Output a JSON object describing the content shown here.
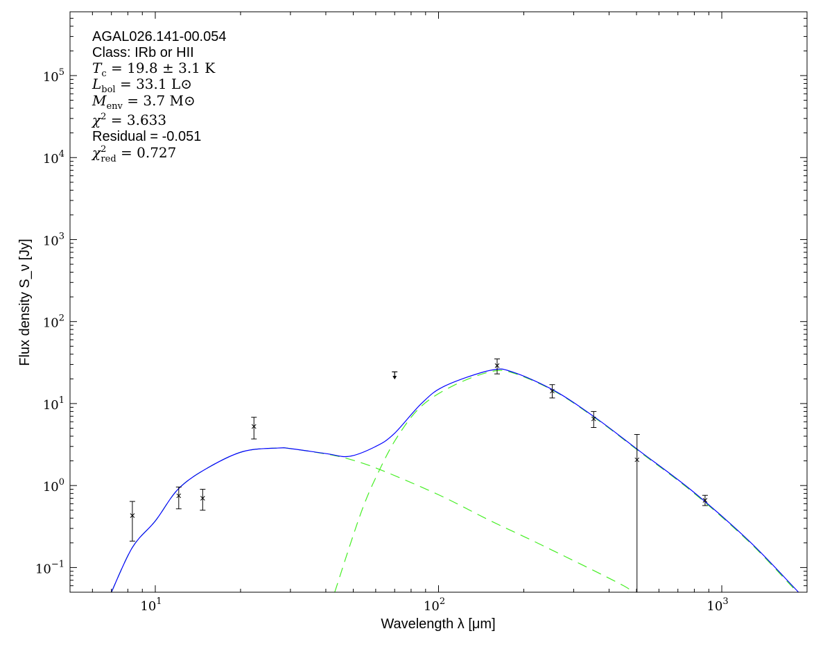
{
  "chart_data": {
    "type": "line",
    "title": "",
    "xlabel": "Wavelength λ [μm]",
    "ylabel": "Flux density S_ν [Jy]",
    "xscale": "log",
    "yscale": "log",
    "xlim": [
      5,
      2000
    ],
    "ylim": [
      0.05,
      600000
    ],
    "grid": false,
    "x_ticks": [
      {
        "base": "10",
        "exp": "1",
        "value": 10
      },
      {
        "base": "10",
        "exp": "2",
        "value": 100
      },
      {
        "base": "10",
        "exp": "3",
        "value": 1000
      }
    ],
    "y_ticks": [
      {
        "base": "10",
        "exp": "−1",
        "value": 0.1
      },
      {
        "base": "10",
        "exp": "0",
        "value": 1
      },
      {
        "base": "10",
        "exp": "1",
        "value": 10
      },
      {
        "base": "10",
        "exp": "2",
        "value": 100
      },
      {
        "base": "10",
        "exp": "3",
        "value": 1000
      },
      {
        "base": "10",
        "exp": "4",
        "value": 10000
      },
      {
        "base": "10",
        "exp": "5",
        "value": 100000
      }
    ],
    "annotations": {
      "name": "AGAL026.141-00.054",
      "class": "Class: IRb or HII",
      "temperature": {
        "sym": "T",
        "sub": "c",
        "sup": "",
        "value": " = 19.8 ± 3.1 K"
      },
      "luminosity": {
        "sym": "L",
        "sub": "bol",
        "sup": "",
        "value": " = 33.1 L⊙"
      },
      "mass": {
        "sym": "M",
        "sub": "env",
        "sup": "",
        "value": " = 3.7 M⊙"
      },
      "chi2": {
        "sym": "χ",
        "sub": "",
        "sup": "2",
        "value": " = 3.633"
      },
      "residual": "Residual = -0.051",
      "chi2_red": {
        "sym": "χ",
        "sub": "red",
        "sup": "2",
        "value": " = 0.727"
      }
    },
    "series": [
      {
        "role": "total-model",
        "color": "#0000ff",
        "style": "solid",
        "x": [
          7.0,
          8.3,
          10,
          12.1,
          15.4,
          20.4,
          27.1,
          30.3,
          40.2,
          48.4,
          59.8,
          69.5,
          87,
          105,
          153,
          184,
          258,
          363,
          508,
          793,
          1250,
          1800,
          1860
        ],
        "y": [
          0.05,
          0.176,
          0.37,
          0.92,
          1.66,
          2.6,
          2.87,
          2.81,
          2.45,
          2.27,
          2.98,
          4.24,
          10,
          16.3,
          25.5,
          24,
          14.2,
          6.5,
          2.7,
          0.84,
          0.21,
          0.057,
          0.05
        ]
      },
      {
        "role": "warm-component",
        "color": "#44ee22",
        "style": "dashed",
        "x": [
          7.0,
          8.3,
          10,
          12.1,
          15.4,
          20.4,
          27.1,
          30.3,
          40.2,
          48.4,
          62,
          101,
          153,
          232,
          450,
          466
        ],
        "y": [
          0.05,
          0.176,
          0.37,
          0.92,
          1.66,
          2.6,
          2.87,
          2.81,
          2.42,
          2.1,
          1.57,
          0.76,
          0.37,
          0.187,
          0.06,
          0.05
        ]
      },
      {
        "role": "cold-component",
        "color": "#44ee22",
        "style": "dashed",
        "x": [
          43,
          53.3,
          62,
          71.8,
          87,
          113,
          153,
          184,
          258,
          363,
          508,
          793,
          1250,
          1800,
          1860
        ],
        "y": [
          0.05,
          0.47,
          1.57,
          4.0,
          9.3,
          16.6,
          24.5,
          23.5,
          14,
          6.4,
          2.65,
          0.82,
          0.205,
          0.055,
          0.05
        ]
      }
    ],
    "points": [
      {
        "x": 8.3,
        "y": 0.43,
        "yerr_low": 0.21,
        "yerr_high": 0.64
      },
      {
        "x": 12.1,
        "y": 0.75,
        "yerr_low": 0.52,
        "yerr_high": 0.96
      },
      {
        "x": 14.7,
        "y": 0.7,
        "yerr_low": 0.5,
        "yerr_high": 0.9
      },
      {
        "x": 22.3,
        "y": 5.25,
        "yerr_low": 3.7,
        "yerr_high": 6.8
      },
      {
        "x": 70,
        "y": 23,
        "upper_limit": true
      },
      {
        "x": 161,
        "y": 29,
        "yerr_low": 23,
        "yerr_high": 35
      },
      {
        "x": 252,
        "y": 14.2,
        "yerr_low": 11.7,
        "yerr_high": 17
      },
      {
        "x": 353,
        "y": 6.5,
        "yerr_low": 5.1,
        "yerr_high": 8
      },
      {
        "x": 502,
        "y": 2.06,
        "yerr_low": 0.001,
        "yerr_high": 4.2
      },
      {
        "x": 873,
        "y": 0.66,
        "yerr_low": 0.57,
        "yerr_high": 0.76
      }
    ]
  }
}
